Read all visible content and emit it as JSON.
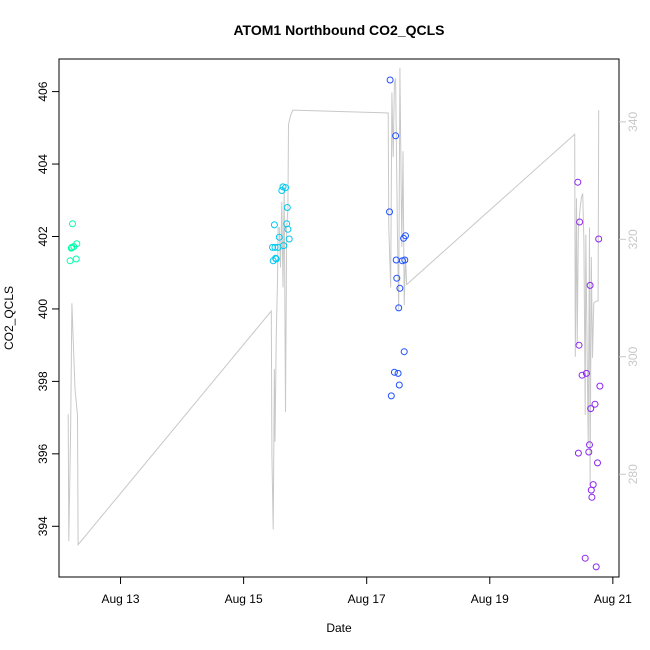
{
  "chart_data": {
    "type": "scatter",
    "title": "ATOM1 Northbound CO2_QCLS",
    "xlabel": "Date",
    "ylabel": "CO2_QCLS",
    "x_ticks": [
      {
        "label": "Aug 13",
        "value": 13.0
      },
      {
        "label": "Aug 15",
        "value": 15.0
      },
      {
        "label": "Aug 17",
        "value": 17.0
      },
      {
        "label": "Aug 19",
        "value": 19.0
      },
      {
        "label": "Aug 21",
        "value": 21.0
      }
    ],
    "y_ticks": [
      394,
      396,
      398,
      400,
      402,
      404,
      406
    ],
    "y2_ticks": [
      280,
      300,
      320,
      340
    ],
    "xlim": [
      12.0,
      21.1
    ],
    "ylim": [
      392.6,
      406.9
    ],
    "y2lim": [
      262.5,
      350.7
    ],
    "grid": false,
    "series": [
      {
        "color": "#00ffaa",
        "points": [
          {
            "x": 12.18,
            "y": 401.33
          },
          {
            "x": 12.2,
            "y": 401.68
          },
          {
            "x": 12.21,
            "y": 401.7
          },
          {
            "x": 12.22,
            "y": 402.35
          },
          {
            "x": 12.24,
            "y": 401.72
          },
          {
            "x": 12.28,
            "y": 401.38
          },
          {
            "x": 12.29,
            "y": 401.8
          }
        ]
      },
      {
        "color": "#00c8f0",
        "points": [
          {
            "x": 15.47,
            "y": 401.7
          },
          {
            "x": 15.48,
            "y": 401.33
          },
          {
            "x": 15.5,
            "y": 402.32
          },
          {
            "x": 15.51,
            "y": 401.7
          },
          {
            "x": 15.52,
            "y": 401.4
          },
          {
            "x": 15.53,
            "y": 401.38
          },
          {
            "x": 15.56,
            "y": 401.7
          },
          {
            "x": 15.58,
            "y": 401.98
          },
          {
            "x": 15.62,
            "y": 403.27
          },
          {
            "x": 15.64,
            "y": 403.37
          },
          {
            "x": 15.65,
            "y": 401.75
          },
          {
            "x": 15.68,
            "y": 403.35
          },
          {
            "x": 15.7,
            "y": 402.35
          },
          {
            "x": 15.71,
            "y": 402.8
          },
          {
            "x": 15.72,
            "y": 402.2
          },
          {
            "x": 15.74,
            "y": 401.93
          }
        ]
      },
      {
        "color": "#1e50ff",
        "points": [
          {
            "x": 17.37,
            "y": 402.68
          },
          {
            "x": 17.38,
            "y": 406.32
          },
          {
            "x": 17.4,
            "y": 397.6
          },
          {
            "x": 17.45,
            "y": 398.25
          },
          {
            "x": 17.47,
            "y": 404.78
          },
          {
            "x": 17.48,
            "y": 401.35
          },
          {
            "x": 17.49,
            "y": 400.85
          },
          {
            "x": 17.51,
            "y": 398.22
          },
          {
            "x": 17.52,
            "y": 400.03
          },
          {
            "x": 17.53,
            "y": 397.9
          },
          {
            "x": 17.54,
            "y": 400.57
          },
          {
            "x": 17.58,
            "y": 401.33
          },
          {
            "x": 17.6,
            "y": 401.95
          },
          {
            "x": 17.61,
            "y": 398.82
          },
          {
            "x": 17.62,
            "y": 401.35
          },
          {
            "x": 17.63,
            "y": 402.02
          }
        ]
      },
      {
        "color": "#8c28f0",
        "points": [
          {
            "x": 20.43,
            "y": 403.5
          },
          {
            "x": 20.44,
            "y": 396.02
          },
          {
            "x": 20.45,
            "y": 399.0
          },
          {
            "x": 20.46,
            "y": 402.4
          },
          {
            "x": 20.5,
            "y": 398.17
          },
          {
            "x": 20.55,
            "y": 393.12
          },
          {
            "x": 20.57,
            "y": 398.22
          },
          {
            "x": 20.61,
            "y": 396.05
          },
          {
            "x": 20.62,
            "y": 396.25
          },
          {
            "x": 20.63,
            "y": 400.65
          },
          {
            "x": 20.64,
            "y": 397.25
          },
          {
            "x": 20.65,
            "y": 395.0
          },
          {
            "x": 20.66,
            "y": 394.8
          },
          {
            "x": 20.68,
            "y": 395.15
          },
          {
            "x": 20.71,
            "y": 397.37
          },
          {
            "x": 20.73,
            "y": 392.88
          },
          {
            "x": 20.75,
            "y": 395.75
          },
          {
            "x": 20.77,
            "y": 401.93
          },
          {
            "x": 20.79,
            "y": 397.87
          }
        ]
      }
    ],
    "line": {
      "color": "#c8c8c8",
      "axis": "right",
      "points": [
        {
          "x": 12.15,
          "y": 290.2
        },
        {
          "x": 12.16,
          "y": 268.6
        },
        {
          "x": 12.19,
          "y": 288.6
        },
        {
          "x": 12.21,
          "y": 309.1
        },
        {
          "x": 12.26,
          "y": 294.5
        },
        {
          "x": 12.3,
          "y": 290.0
        },
        {
          "x": 12.31,
          "y": 268.0
        },
        {
          "x": 15.45,
          "y": 307.8
        },
        {
          "x": 15.46,
          "y": 283.4
        },
        {
          "x": 15.48,
          "y": 270.6
        },
        {
          "x": 15.5,
          "y": 297.9
        },
        {
          "x": 15.51,
          "y": 285.5
        },
        {
          "x": 15.53,
          "y": 303.0
        },
        {
          "x": 15.55,
          "y": 313.0
        },
        {
          "x": 15.56,
          "y": 321.9
        },
        {
          "x": 15.58,
          "y": 322.0
        },
        {
          "x": 15.6,
          "y": 315.2
        },
        {
          "x": 15.62,
          "y": 326.4
        },
        {
          "x": 15.64,
          "y": 311.8
        },
        {
          "x": 15.66,
          "y": 328.9
        },
        {
          "x": 15.68,
          "y": 290.6
        },
        {
          "x": 15.7,
          "y": 322.0
        },
        {
          "x": 15.72,
          "y": 325.0
        },
        {
          "x": 15.73,
          "y": 339.5
        },
        {
          "x": 15.76,
          "y": 341.0
        },
        {
          "x": 15.8,
          "y": 342.0
        },
        {
          "x": 17.35,
          "y": 341.5
        },
        {
          "x": 17.36,
          "y": 322.0
        },
        {
          "x": 17.38,
          "y": 315.0
        },
        {
          "x": 17.39,
          "y": 311.8
        },
        {
          "x": 17.41,
          "y": 345.0
        },
        {
          "x": 17.43,
          "y": 334.0
        },
        {
          "x": 17.45,
          "y": 346.5
        },
        {
          "x": 17.47,
          "y": 347.4
        },
        {
          "x": 17.5,
          "y": 320.0
        },
        {
          "x": 17.52,
          "y": 308.0
        },
        {
          "x": 17.54,
          "y": 349.2
        },
        {
          "x": 17.57,
          "y": 318.7
        },
        {
          "x": 17.59,
          "y": 335.0
        },
        {
          "x": 17.61,
          "y": 308.8
        },
        {
          "x": 17.63,
          "y": 317.0
        },
        {
          "x": 17.65,
          "y": 312.3
        },
        {
          "x": 20.38,
          "y": 337.9
        },
        {
          "x": 20.39,
          "y": 300.0
        },
        {
          "x": 20.41,
          "y": 327.0
        },
        {
          "x": 20.42,
          "y": 302.0
        },
        {
          "x": 20.44,
          "y": 322.0
        },
        {
          "x": 20.47,
          "y": 325.4
        },
        {
          "x": 20.49,
          "y": 327.2
        },
        {
          "x": 20.51,
          "y": 327.8
        },
        {
          "x": 20.53,
          "y": 319.7
        },
        {
          "x": 20.55,
          "y": 290.1
        },
        {
          "x": 20.56,
          "y": 320.8
        },
        {
          "x": 20.58,
          "y": 303.0
        },
        {
          "x": 20.6,
          "y": 285.0
        },
        {
          "x": 20.62,
          "y": 322.0
        },
        {
          "x": 20.63,
          "y": 278.0
        },
        {
          "x": 20.65,
          "y": 317.0
        },
        {
          "x": 20.67,
          "y": 299.8
        },
        {
          "x": 20.69,
          "y": 309.2
        },
        {
          "x": 20.74,
          "y": 309.5
        },
        {
          "x": 20.76,
          "y": 309.5
        },
        {
          "x": 20.77,
          "y": 342.0
        }
      ]
    }
  }
}
